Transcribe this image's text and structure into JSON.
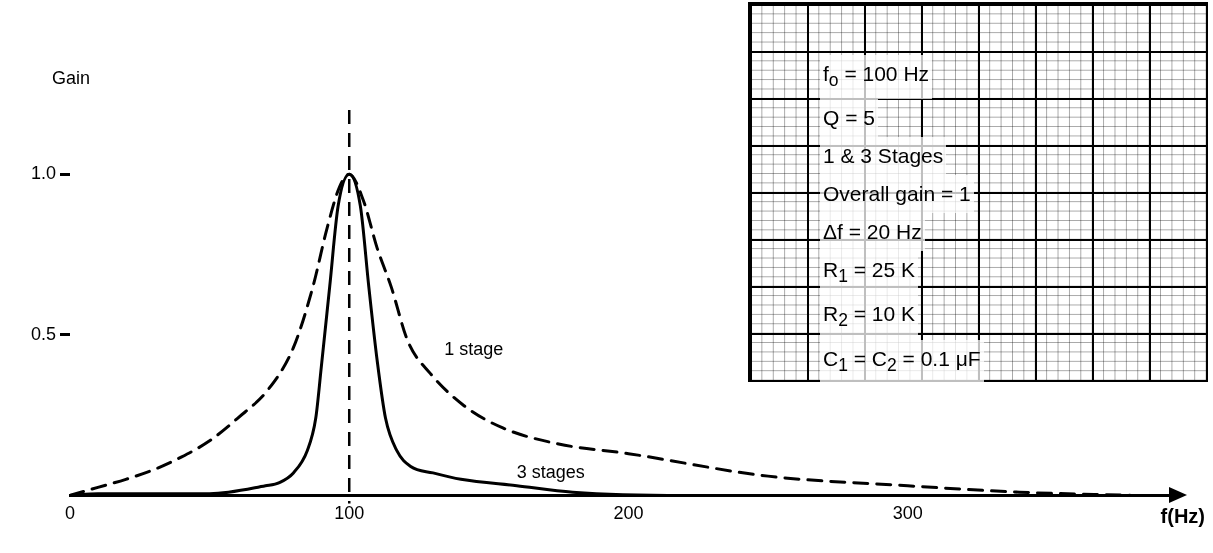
{
  "chart_data": {
    "type": "line",
    "xlabel": "f(Hz)",
    "ylabel": "Gain",
    "xlim": [
      0,
      395
    ],
    "xticks": [
      0,
      100,
      200,
      300
    ],
    "ylim": [
      0,
      1.2
    ],
    "yticks": [
      {
        "value": 0.5,
        "label": "0.5"
      },
      {
        "value": 1.0,
        "label": "1.0"
      }
    ],
    "grid": false,
    "legend": false,
    "marker": "none",
    "series": [
      {
        "name": "1 stage",
        "color": "#000000",
        "line_style": "dashed",
        "x": [
          0,
          10,
          20,
          30,
          40,
          50,
          60,
          71,
          80,
          87,
          92,
          96.5,
          100,
          105,
          110,
          115,
          121,
          129,
          141,
          155,
          175,
          200,
          250,
          300,
          340,
          380
        ],
        "values": [
          0,
          0.025,
          0.05,
          0.08,
          0.12,
          0.17,
          0.24,
          0.33,
          0.46,
          0.65,
          0.83,
          0.96,
          1.0,
          0.92,
          0.77,
          0.65,
          0.48,
          0.38,
          0.28,
          0.21,
          0.16,
          0.13,
          0.06,
          0.03,
          0.01,
          0
        ]
      },
      {
        "name": "3 stages",
        "color": "#000000",
        "line_style": "solid",
        "x": [
          0,
          10,
          50,
          70,
          75,
          80,
          85,
          88,
          90,
          93,
          96,
          100,
          104,
          107,
          110,
          113,
          117,
          122,
          130,
          140,
          160,
          180,
          220,
          380
        ],
        "values": [
          0,
          0.005,
          0.005,
          0.03,
          0.04,
          0.07,
          0.14,
          0.24,
          0.4,
          0.65,
          0.9,
          1.0,
          0.9,
          0.65,
          0.42,
          0.24,
          0.14,
          0.09,
          0.07,
          0.05,
          0.03,
          0.01,
          0,
          0
        ]
      }
    ],
    "ref_lines": [
      {
        "axis": "x",
        "value": 100,
        "color": "#000000",
        "line_style": "dashed"
      }
    ],
    "annotations": [
      "f$_{o}$ = 100 Hz",
      "Q = 5",
      "1 & 3 Stages",
      "Overall gain = 1",
      "Δf = 20 Hz",
      "R$_{1}$ = 25 K",
      "R$_{2}$ = 10 K",
      "C$_{1}$ = C$_{2}$ = 0.1 μF"
    ]
  }
}
